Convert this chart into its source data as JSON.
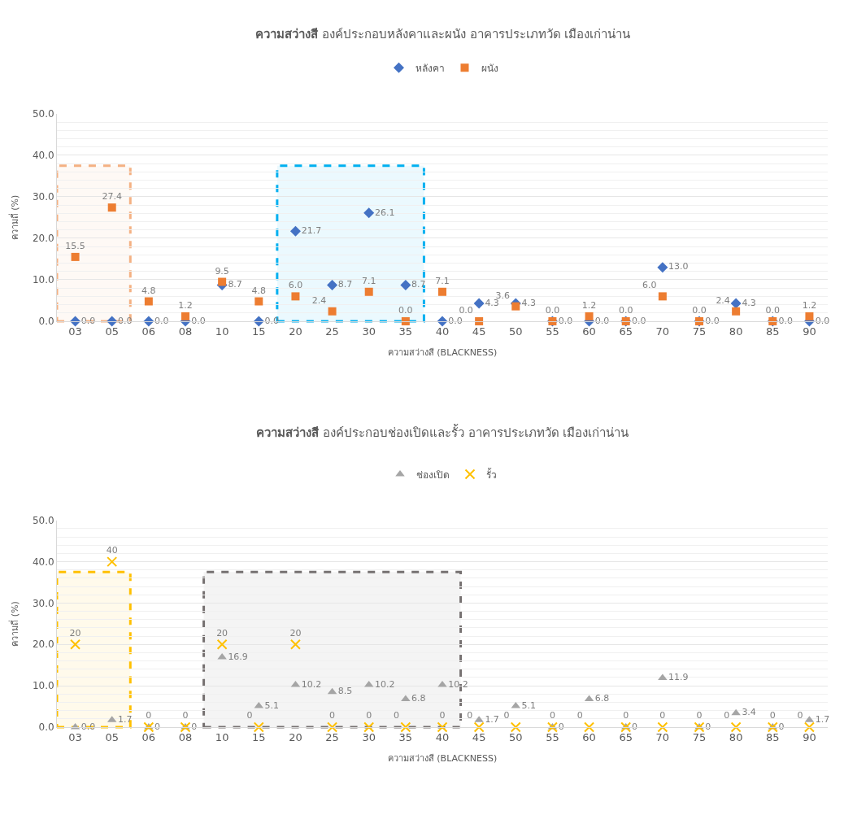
{
  "chart_data": [
    {
      "type": "scatter",
      "title": "ความสว่างสี องค์ประกอบหลังคาและผนัง อาคารประเภทวัด เมืองเก่าน่าน",
      "xlabel": "ความสว่างสี (BLACKNESS)",
      "ylabel": "ความถี่ (%)",
      "categories": [
        "03",
        "05",
        "06",
        "08",
        "10",
        "15",
        "20",
        "25",
        "30",
        "35",
        "40",
        "45",
        "50",
        "55",
        "60",
        "65",
        "70",
        "75",
        "80",
        "85",
        "90"
      ],
      "ylim": [
        0,
        50
      ],
      "yticks": [
        {
          "value": 0,
          "label": "0.0"
        },
        {
          "value": 10,
          "label": "10.0"
        },
        {
          "value": 20,
          "label": "20.0"
        },
        {
          "value": 30,
          "label": "30.0"
        },
        {
          "value": 40,
          "label": "40.0"
        },
        {
          "value": 50,
          "label": "50.0"
        }
      ],
      "grid": "y",
      "legend": "top",
      "series": [
        {
          "name": "หลังคา",
          "color": "#4472c4",
          "marker": "diamond",
          "values": [
            0,
            0,
            0,
            0,
            8.7,
            0,
            21.7,
            8.7,
            26.1,
            8.7,
            0,
            4.3,
            4.3,
            0,
            0,
            0,
            13.0,
            0,
            4.3,
            0,
            0
          ],
          "value_labels": [
            "0.0",
            "0.0",
            "0.0",
            "0.0",
            "8.7",
            "0.0",
            "21.7",
            "8.7",
            "26.1",
            "8.7",
            "0.0",
            "4.3",
            "4.3",
            "0.0",
            "0.0",
            "0.0",
            "13.0",
            "0.0",
            "4.3",
            "0.0",
            "0.0"
          ]
        },
        {
          "name": "ผนัง",
          "color": "#ed7d31",
          "marker": "square",
          "values": [
            15.5,
            27.4,
            4.8,
            1.2,
            9.5,
            4.8,
            6.0,
            2.4,
            7.1,
            0,
            7.1,
            0,
            3.6,
            0,
            1.2,
            0,
            6.0,
            0,
            2.4,
            0,
            1.2
          ],
          "value_labels": [
            "15.5",
            "27.4",
            "4.8",
            "1.2",
            "9.5",
            "4.8",
            "6.0",
            "2.4",
            "7.1",
            "0.0",
            "7.1",
            "0.0",
            "3.6",
            "0.0",
            "1.2",
            "0.0",
            "6.0",
            "0.0",
            "2.4",
            "0.0",
            "1.2"
          ]
        }
      ],
      "bands": [
        {
          "axis": "x",
          "from": "03",
          "to": "05",
          "color": "#f4b183"
        },
        {
          "axis": "x",
          "from": "20",
          "to": "35",
          "color": "#00b0f0"
        }
      ]
    },
    {
      "type": "scatter",
      "title": "ความสว่างสี องค์ประกอบช่องเปิดและรั้ว อาคารประเภทวัด เมืองเก่าน่าน",
      "xlabel": "ความสว่างสี (BLACKNESS)",
      "ylabel": "ความถี่ (%)",
      "categories": [
        "03",
        "05",
        "06",
        "08",
        "10",
        "15",
        "20",
        "25",
        "30",
        "35",
        "40",
        "45",
        "50",
        "55",
        "60",
        "65",
        "70",
        "75",
        "80",
        "85",
        "90"
      ],
      "ylim": [
        0,
        50
      ],
      "yticks": [
        {
          "value": 0,
          "label": "0.0"
        },
        {
          "value": 10,
          "label": "10.0"
        },
        {
          "value": 20,
          "label": "20.0"
        },
        {
          "value": 30,
          "label": "30.0"
        },
        {
          "value": 40,
          "label": "40.0"
        },
        {
          "value": 50,
          "label": "50.0"
        }
      ],
      "grid": "y",
      "legend": "top",
      "series": [
        {
          "name": "ช่องเปิด",
          "color": "#a5a5a5",
          "marker": "triangle",
          "values": [
            0,
            1.7,
            0,
            0,
            16.9,
            5.1,
            10.2,
            8.5,
            10.2,
            6.8,
            10.2,
            1.7,
            5.1,
            0,
            6.8,
            0,
            11.9,
            0,
            3.4,
            0,
            1.7
          ],
          "value_labels": [
            "0.0",
            "1.7",
            "0",
            "0",
            "16.9",
            "5.1",
            "10.2",
            "8.5",
            "10.2",
            "6.8",
            "10.2",
            "1.7",
            "5.1",
            "0",
            "6.8",
            "0",
            "11.9",
            "0",
            "3.4",
            "0",
            "1.7"
          ]
        },
        {
          "name": "รั้ว",
          "color": "#ffc000",
          "marker": "cross",
          "values": [
            20,
            40,
            0,
            0,
            20,
            0,
            20,
            0,
            0,
            0,
            0,
            0,
            0,
            0,
            0,
            0,
            0,
            0,
            0,
            0,
            0
          ],
          "value_labels": [
            "20",
            "40",
            "0",
            "0",
            "20",
            "0",
            "20",
            "0",
            "0",
            "0",
            "0",
            "0",
            "0",
            "0",
            "0",
            "0",
            "0",
            "0",
            "0",
            "0",
            "0"
          ]
        }
      ],
      "bands": [
        {
          "axis": "x",
          "from": "03",
          "to": "05",
          "color": "#ffc000"
        },
        {
          "axis": "x",
          "from": "10",
          "to": "40",
          "color": "#767171"
        }
      ]
    }
  ]
}
